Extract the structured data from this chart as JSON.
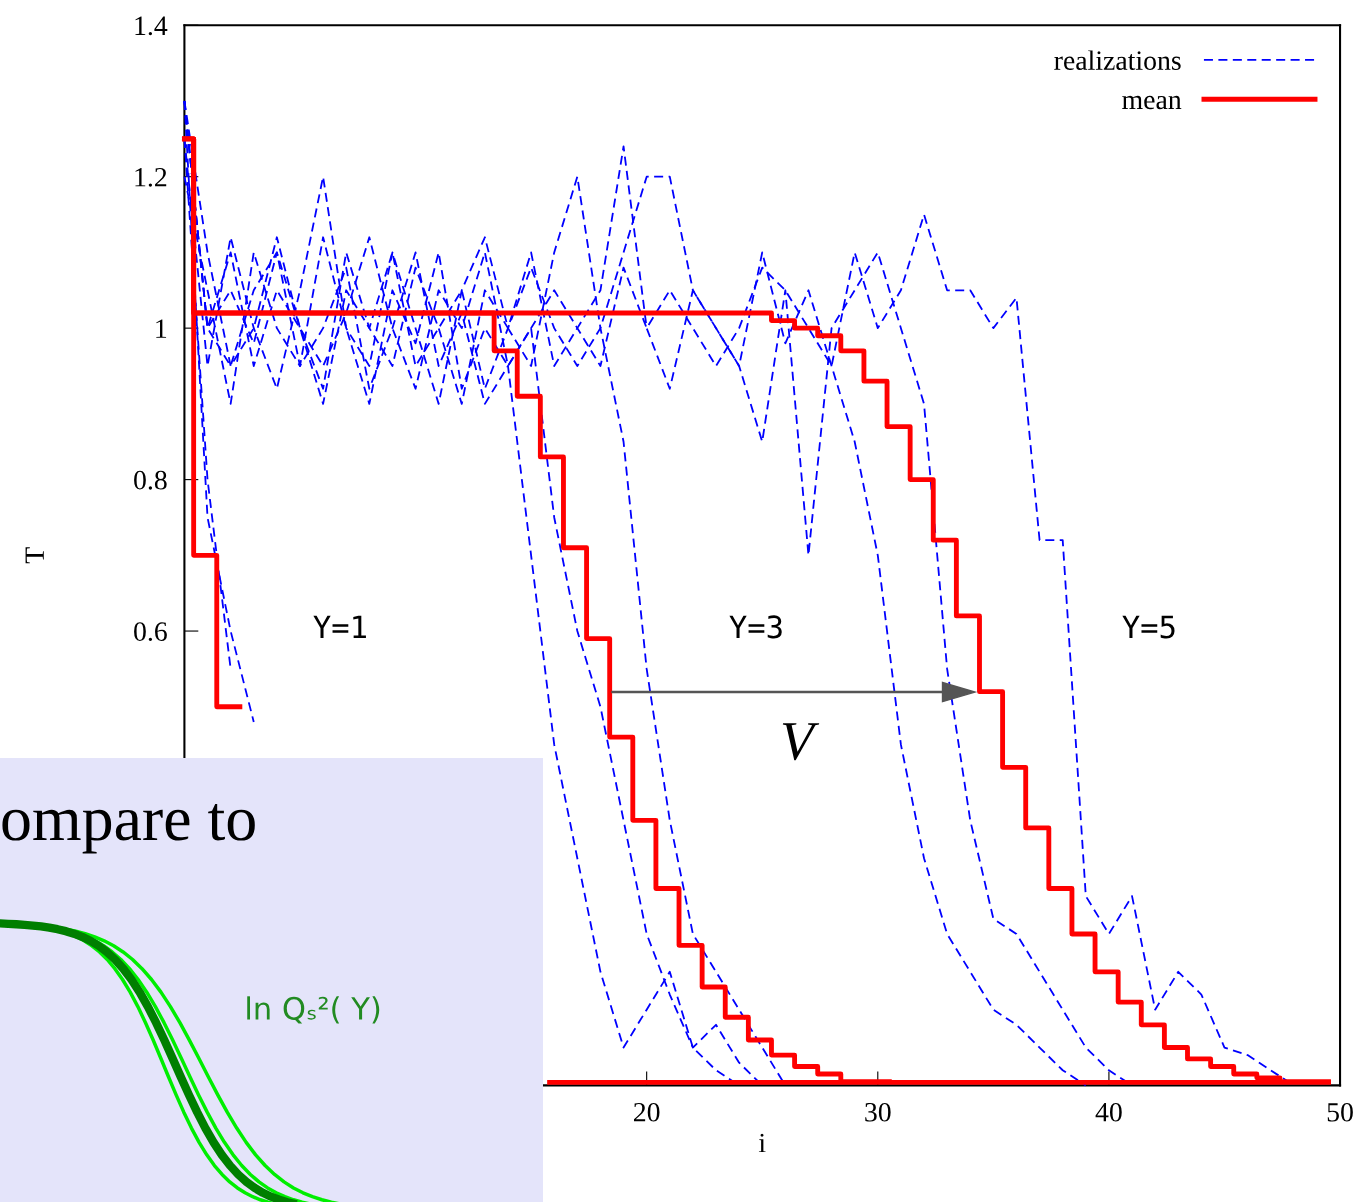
{
  "chart_data": [
    {
      "type": "line",
      "xlabel": "i",
      "ylabel": "T",
      "xlim": [
        0,
        50
      ],
      "ylim": [
        0,
        1.4
      ],
      "xticks": [
        20,
        30,
        40,
        50
      ],
      "yticks": [
        0.6,
        0.8,
        1,
        1.2,
        1.4
      ],
      "grid": false,
      "legend": "top right",
      "line_style": "dashed",
      "marker": "none",
      "series": [
        {
          "name": "realizations",
          "color": "#0000ff",
          "x": [
            0,
            1,
            2,
            3,
            4,
            5,
            6,
            7,
            8,
            9,
            10,
            11,
            12,
            13,
            14,
            15,
            16,
            17,
            18,
            19,
            20,
            21,
            22,
            23,
            24
          ],
          "values": [
            1.3,
            1.0,
            0.95,
            1.05,
            1.1,
            0.95,
            1.0,
            1.08,
            0.92,
            1.0,
            1.1,
            0.95,
            1.02,
            0.9,
            0.95,
            0.7,
            0.45,
            0.3,
            0.15,
            0.05,
            0.1,
            0.15,
            0.05,
            0.02,
            0.0
          ]
        },
        {
          "color": "#0000ff",
          "x": [
            0,
            1,
            2,
            3,
            4,
            5,
            6,
            7,
            8,
            9,
            10,
            11,
            12,
            13,
            14,
            15,
            16,
            17,
            18,
            19,
            20,
            21,
            22,
            23,
            24,
            25
          ],
          "values": [
            1.2,
            1.05,
            0.9,
            1.1,
            1.0,
            0.95,
            1.12,
            1.0,
            0.9,
            1.05,
            0.98,
            1.1,
            0.92,
            1.0,
            0.95,
            1.0,
            0.75,
            0.6,
            0.5,
            0.35,
            0.2,
            0.12,
            0.05,
            0.08,
            0.03,
            0.0
          ]
        },
        {
          "color": "#0000ff",
          "x": [
            0,
            1,
            2,
            3,
            4,
            5,
            6,
            7,
            8,
            9,
            10,
            11,
            12,
            13,
            14,
            15,
            16,
            17,
            18,
            19,
            20,
            21,
            22,
            23,
            24,
            25,
            26
          ],
          "values": [
            1.25,
            0.95,
            1.12,
            1.0,
            0.92,
            1.05,
            1.2,
            1.0,
            0.95,
            1.1,
            1.0,
            0.9,
            1.05,
            1.12,
            1.0,
            0.95,
            1.1,
            1.2,
            1.0,
            0.85,
            0.55,
            0.35,
            0.2,
            0.15,
            0.1,
            0.05,
            0.0
          ]
        },
        {
          "color": "#0000ff",
          "x": [
            0,
            1,
            2,
            3,
            4,
            5,
            6,
            7,
            8,
            9,
            10,
            11,
            12,
            13,
            14,
            15,
            16,
            17,
            18,
            19,
            20,
            21,
            22,
            23,
            24,
            25,
            26,
            27,
            28,
            29,
            30,
            31,
            32,
            33,
            34,
            35,
            36,
            37,
            38,
            39
          ],
          "values": [
            1.3,
            1.0,
            1.1,
            0.95,
            1.05,
            1.0,
            0.92,
            1.1,
            1.0,
            0.95,
            1.08,
            1.0,
            0.9,
            1.05,
            1.0,
            1.1,
            0.95,
            1.0,
            1.05,
            1.24,
            1.0,
            0.92,
            1.05,
            1.0,
            0.95,
            1.1,
            0.98,
            1.05,
            0.95,
            0.85,
            0.7,
            0.45,
            0.3,
            0.2,
            0.15,
            0.1,
            0.08,
            0.05,
            0.02,
            0.0
          ]
        },
        {
          "color": "#0000ff",
          "x": [
            0,
            1,
            2,
            3,
            4,
            5,
            6,
            7,
            8,
            9,
            10,
            11,
            12,
            13,
            14,
            15,
            16,
            17,
            18,
            19,
            20,
            21,
            22,
            23,
            24,
            25,
            26,
            27,
            28,
            29,
            30,
            31,
            32,
            33,
            34,
            35,
            36,
            37,
            38,
            39,
            40,
            41
          ],
          "values": [
            1.3,
            1.1,
            0.95,
            1.0,
            1.12,
            1.0,
            0.9,
            1.05,
            1.0,
            1.1,
            0.95,
            1.0,
            1.05,
            0.92,
            1.0,
            1.08,
            1.0,
            0.95,
            1.0,
            1.1,
            1.2,
            1.2,
            1.05,
            1.0,
            0.95,
            0.85,
            1.05,
            0.7,
            1.0,
            1.05,
            1.1,
            1.0,
            0.9,
            0.55,
            0.35,
            0.22,
            0.2,
            0.15,
            0.1,
            0.05,
            0.02,
            0.0
          ]
        },
        {
          "color": "#0000ff",
          "x": [
            0,
            1,
            2,
            3,
            4,
            5,
            6,
            7,
            8,
            9,
            10,
            11,
            12,
            13,
            14,
            15,
            16,
            17,
            18,
            19,
            20,
            21,
            22,
            23,
            24,
            25,
            26,
            27,
            28,
            29,
            30,
            31,
            32,
            33,
            34,
            35,
            36,
            37,
            38,
            39,
            40,
            41,
            42,
            43,
            44,
            45,
            46,
            47,
            48
          ],
          "values": [
            1.3,
            1.0,
            1.05,
            0.98,
            1.1,
            1.0,
            0.95,
            1.02,
            1.12,
            1.0,
            0.92,
            1.05,
            1.0,
            1.1,
            0.95,
            1.0,
            1.05,
            1.0,
            0.95,
            1.08,
            1.0,
            1.05,
            1.0,
            0.95,
            1.0,
            1.08,
            1.05,
            1.0,
            0.95,
            1.1,
            1.0,
            1.05,
            1.15,
            1.05,
            1.05,
            1.0,
            1.04,
            0.72,
            0.72,
            0.25,
            0.2,
            0.25,
            0.1,
            0.15,
            0.12,
            0.05,
            0.04,
            0.02,
            0.0
          ]
        },
        {
          "color": "#0000ff",
          "x": [
            0,
            1,
            2,
            3
          ],
          "values": [
            1.3,
            0.75,
            0.6,
            0.48
          ]
        },
        {
          "color": "#0000ff",
          "x": [
            0,
            1,
            2
          ],
          "values": [
            1.25,
            0.8,
            0.55
          ]
        },
        {
          "name": "mean",
          "type": "step",
          "line_style": "solid",
          "color": "#ff0000",
          "x": [
            0,
            0.4,
            1.4,
            2.4,
            15.8,
            49.5
          ],
          "values": [
            1.25,
            0.7,
            0.5,
            null,
            0.004,
            0.004
          ]
        },
        {
          "type": "step",
          "line_style": "solid",
          "color": "#ff0000",
          "x": [
            0,
            0.4,
            13.4,
            14.4,
            15.4,
            16.4,
            17.4,
            18.4,
            19.4,
            20.4,
            21.4,
            22.4,
            23.4,
            24.4,
            25.4,
            26.4,
            27.4,
            28.4,
            30.5
          ],
          "values": [
            1.25,
            1.02,
            0.97,
            0.91,
            0.83,
            0.71,
            0.59,
            0.46,
            0.35,
            0.26,
            0.185,
            0.13,
            0.09,
            0.06,
            0.04,
            0.025,
            0.015,
            0.005,
            0.005
          ]
        },
        {
          "type": "step",
          "line_style": "solid",
          "color": "#ff0000",
          "x": [
            0,
            0.4,
            25.4,
            26.4,
            27.4,
            28.4,
            29.4,
            30.4,
            31.4,
            32.4,
            33.4,
            34.4,
            35.4,
            36.4,
            37.4,
            38.4,
            39.4,
            40.4,
            41.4,
            42.4,
            43.4,
            44.4,
            45.4,
            46.4,
            47.4,
            49.5
          ],
          "values": [
            1.25,
            1.02,
            1.01,
            1.0,
            0.99,
            0.97,
            0.93,
            0.87,
            0.8,
            0.72,
            0.62,
            0.52,
            0.42,
            0.34,
            0.26,
            0.2,
            0.15,
            0.11,
            0.08,
            0.05,
            0.035,
            0.025,
            0.015,
            0.01,
            0.005,
            0.005
          ]
        }
      ],
      "annotations": [
        "Y=1",
        "Y=3",
        "Y=5",
        "V"
      ]
    },
    {
      "type": "other",
      "annotations": [
        "ompare to",
        "ln Qₛ²( Y)"
      ]
    }
  ]
}
